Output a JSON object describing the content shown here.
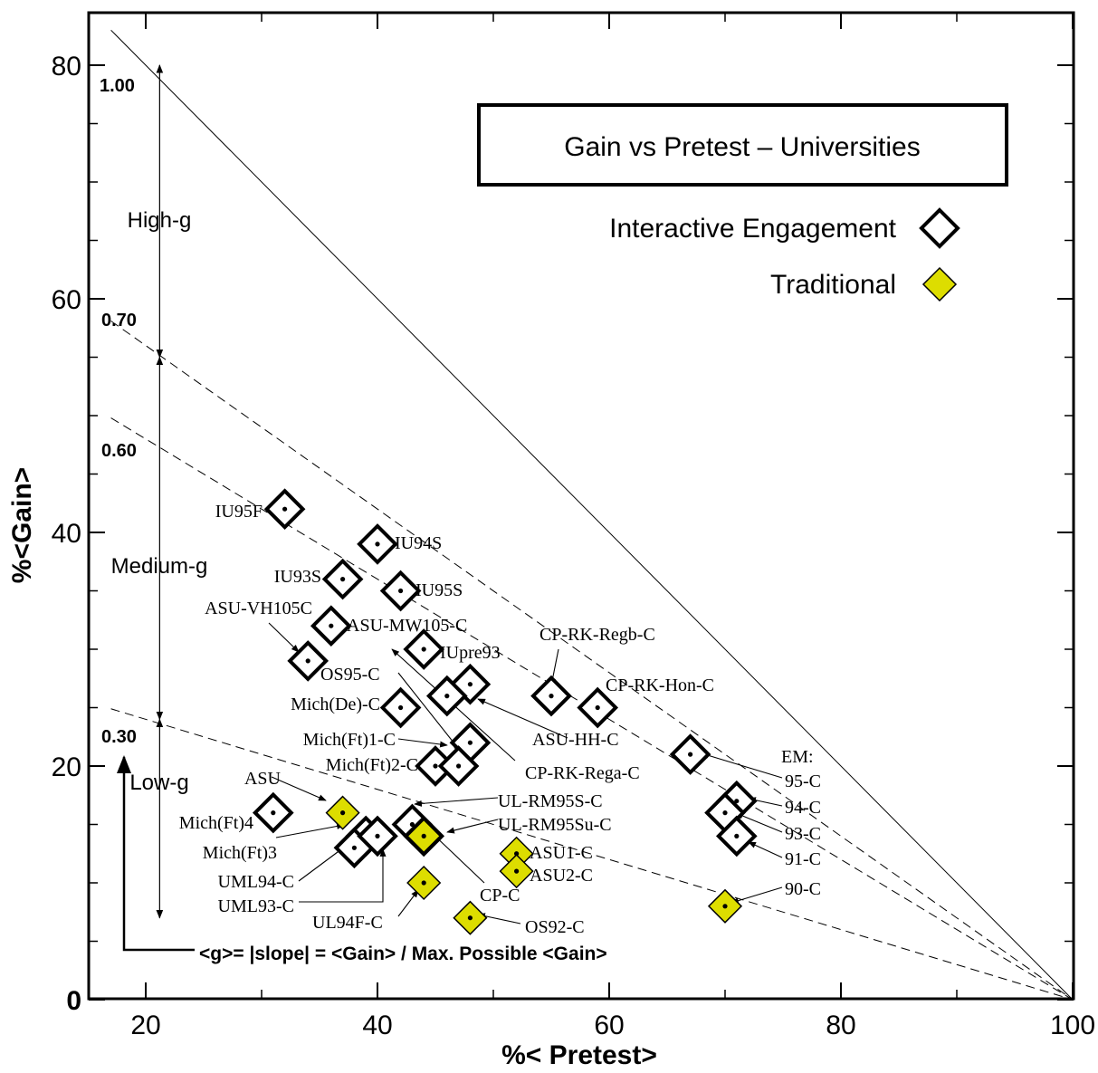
{
  "chart_data": {
    "type": "scatter",
    "title": "Gain vs Pretest – Universities",
    "xlabel": "%< Pretest>",
    "ylabel": "%<Gain>",
    "xlim": [
      15,
      100
    ],
    "ylim": [
      0,
      85
    ],
    "xticks": [
      20,
      40,
      60,
      80,
      100
    ],
    "yticks": [
      0,
      20,
      40,
      60,
      80
    ],
    "grid": false,
    "legend_position": "top-right",
    "colors": {
      "interactive": "#ffffff",
      "traditional": "#dddd00",
      "stroke": "#000000"
    },
    "series": [
      {
        "name": "Interactive Engagement",
        "marker": "open-diamond",
        "points": [
          {
            "x": 32,
            "y": 42,
            "label": "IU95F"
          },
          {
            "x": 40,
            "y": 39,
            "label": "IU94S"
          },
          {
            "x": 37,
            "y": 36,
            "label": "IU93S"
          },
          {
            "x": 42,
            "y": 35,
            "label": "IU95S"
          },
          {
            "x": 36,
            "y": 32,
            "label": "ASU-MW105-C"
          },
          {
            "x": 34,
            "y": 29,
            "label": "ASU-VH105C"
          },
          {
            "x": 44,
            "y": 30,
            "label": "IUpre93"
          },
          {
            "x": 48,
            "y": 27,
            "label": "ASU-HH-C"
          },
          {
            "x": 46,
            "y": 26,
            "label": "OS95-C"
          },
          {
            "x": 42,
            "y": 25,
            "label": "Mich(De)-C"
          },
          {
            "x": 55,
            "y": 26,
            "label": "CP-RK-Regb-C"
          },
          {
            "x": 59,
            "y": 25,
            "label": "CP-RK-Hon-C"
          },
          {
            "x": 48,
            "y": 22,
            "label": "Mich(Ft)1-C"
          },
          {
            "x": 45,
            "y": 20,
            "label": "Mich(Ft)2-C"
          },
          {
            "x": 47,
            "y": 20,
            "label": "CP-RK-Rega-C"
          },
          {
            "x": 67,
            "y": 21,
            "label": "EM 95-C"
          },
          {
            "x": 71,
            "y": 17,
            "label": "EM 94-C"
          },
          {
            "x": 70,
            "y": 16,
            "label": "EM 93-C"
          },
          {
            "x": 71,
            "y": 14,
            "label": "EM 91-C"
          },
          {
            "x": 31,
            "y": 16,
            "label": "Mich(Ft)4"
          },
          {
            "x": 39,
            "y": 14,
            "label": "Mich(Ft)3"
          },
          {
            "x": 38,
            "y": 13,
            "label": "UML94-C"
          },
          {
            "x": 40,
            "y": 14,
            "label": "UML93-C"
          },
          {
            "x": 43,
            "y": 15,
            "label": "UL-RM95S-C"
          },
          {
            "x": 44,
            "y": 14,
            "label": "UL-RM95Su-C"
          }
        ]
      },
      {
        "name": "Traditional",
        "marker": "filled-diamond",
        "points": [
          {
            "x": 37,
            "y": 16,
            "label": "ASU"
          },
          {
            "x": 44,
            "y": 14,
            "label": "CP-C"
          },
          {
            "x": 44,
            "y": 10,
            "label": "UL94F-C"
          },
          {
            "x": 48,
            "y": 7,
            "label": "OS92-C"
          },
          {
            "x": 52,
            "y": 12.5,
            "label": "ASU1-C"
          },
          {
            "x": 52,
            "y": 11,
            "label": "ASU2-C"
          },
          {
            "x": 70,
            "y": 8,
            "label": "90-C"
          }
        ]
      }
    ],
    "reference_lines": [
      {
        "g": 1.0,
        "label": "1.00",
        "style": "solid"
      },
      {
        "g": 0.7,
        "label": "0.70",
        "style": "dashed"
      },
      {
        "g": 0.6,
        "label": "0.60",
        "style": "dashed"
      },
      {
        "g": 0.3,
        "label": "0.30",
        "style": "dashed"
      }
    ],
    "bands": [
      {
        "label": "High-g",
        "from_y": 55,
        "to_y": 80
      },
      {
        "label": "Medium-g",
        "from_y": 24,
        "to_y": 55
      },
      {
        "label": "Low-g",
        "from_y": 7,
        "to_y": 24
      }
    ],
    "annotations": {
      "em_group": "EM:",
      "formula": "<g>= |slope| = <Gain> / Max. Possible <Gain>"
    }
  }
}
